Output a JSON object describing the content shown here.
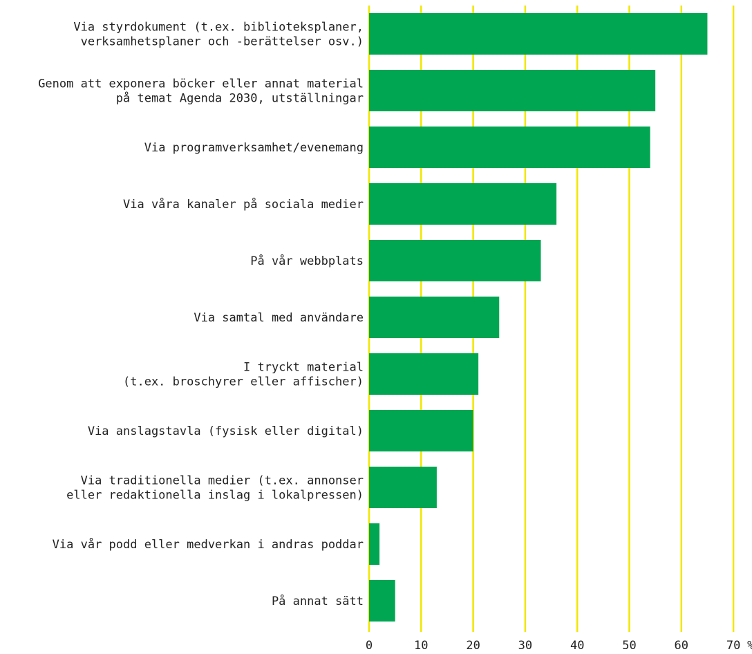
{
  "chart_data": {
    "type": "bar",
    "orientation": "horizontal",
    "title": "",
    "xlabel": "",
    "ylabel": "",
    "unit_label": "%",
    "xlim": [
      0,
      70
    ],
    "ticks": [
      0,
      10,
      20,
      30,
      40,
      50,
      60,
      70
    ],
    "grid": true,
    "legend": "none",
    "colors": {
      "bar": "#00a651",
      "grid": "#f2e600",
      "text": "#222222"
    },
    "categories": [
      [
        "Via styrdokument (t.ex. biblioteksplaner,",
        "verksamhetsplaner och -berättelser osv.)"
      ],
      [
        "Genom att exponera böcker eller annat material",
        "på temat Agenda 2030, utställningar"
      ],
      [
        "Via programverksamhet/evenemang"
      ],
      [
        "Via våra kanaler på sociala medier"
      ],
      [
        "På vår webbplats"
      ],
      [
        "Via samtal med användare"
      ],
      [
        "I tryckt material",
        "(t.ex. broschyrer eller affischer)"
      ],
      [
        "Via anslagstavla (fysisk eller digital)"
      ],
      [
        "Via traditionella medier (t.ex. annonser",
        "eller redaktionella inslag i lokalpressen)"
      ],
      [
        "Via vår podd eller medverkan i andras poddar"
      ],
      [
        "På annat sätt"
      ]
    ],
    "values": [
      65,
      55,
      54,
      36,
      33,
      25,
      21,
      20,
      13,
      2,
      5
    ]
  }
}
